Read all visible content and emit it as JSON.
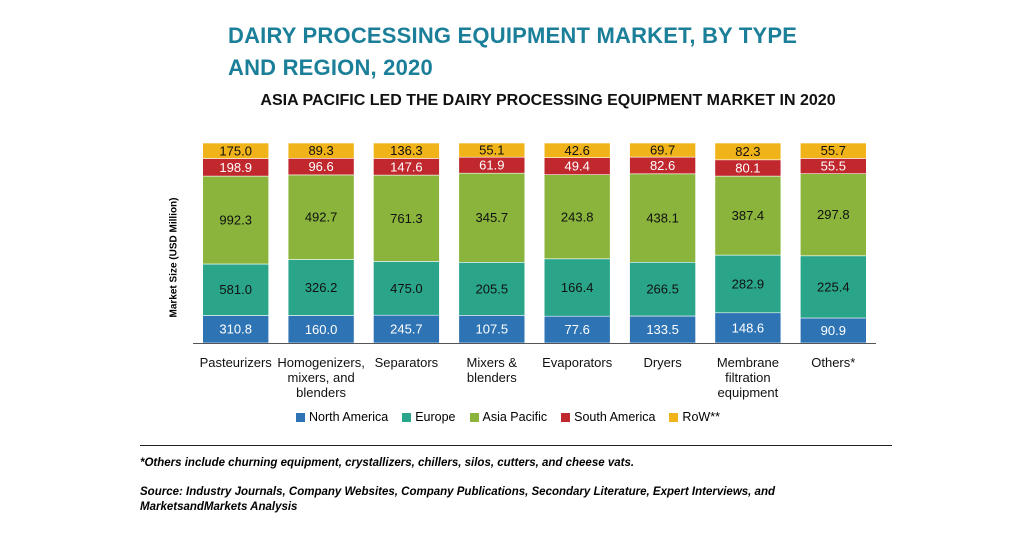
{
  "title_line1": "DAIRY PROCESSING EQUIPMENT MARKET, BY TYPE",
  "title_line2": "AND REGION, 2020",
  "subtitle": "ASIA PACIFIC LED THE DAIRY PROCESSING EQUIPMENT MARKET IN 2020",
  "footnote": "*Others include churning equipment, crystallizers, chillers, silos, cutters, and cheese vats.",
  "source": "Source: Industry Journals, Company Websites, Company Publications, Secondary Literature, Expert Interviews, and MarketsandMarkets Analysis",
  "colors": {
    "North America": "#2e74b5",
    "Europe": "#2aa58a",
    "Asia Pacific": "#8ab43c",
    "South America": "#c0282d",
    "RoW**": "#f0b41a",
    "title": "#1b7f99"
  },
  "chart_data": {
    "type": "bar",
    "stacked": true,
    "ylabel": "Market Size (USD Million)",
    "categories": [
      "Pasteurizers",
      "Homogenizers, mixers, and blenders",
      "Separators",
      "Mixers & blenders",
      "Evaporators",
      "Dryers",
      "Membrane filtration equipment",
      "Others*"
    ],
    "series": [
      {
        "name": "North America",
        "values": [
          310.8,
          160.0,
          245.7,
          107.5,
          77.6,
          133.5,
          148.6,
          90.9
        ]
      },
      {
        "name": "Europe",
        "values": [
          581.0,
          326.2,
          475.0,
          205.5,
          166.4,
          266.5,
          282.9,
          225.4
        ]
      },
      {
        "name": "Asia Pacific",
        "values": [
          992.3,
          492.7,
          761.3,
          345.7,
          243.8,
          438.1,
          387.4,
          297.8
        ]
      },
      {
        "name": "South America",
        "values": [
          198.9,
          96.6,
          147.6,
          61.9,
          49.4,
          82.6,
          80.1,
          55.5
        ]
      },
      {
        "name": "RoW**",
        "values": [
          175.0,
          89.3,
          136.3,
          55.1,
          42.6,
          69.7,
          82.3,
          55.7
        ]
      }
    ],
    "value_labels": [
      [
        "310.8",
        "160.0",
        "245.7",
        "107.5",
        "77.6",
        "133.5",
        "148.6",
        "90.9"
      ],
      [
        "581.0",
        "326.2",
        "475.0",
        "205.5",
        "166.4",
        "266.5",
        "282.9",
        "225.4"
      ],
      [
        "992.3",
        "492.7",
        "761.3",
        "345.7",
        "243.8",
        "438.1",
        "387.4",
        "297.8"
      ],
      [
        "198.9",
        "96.6",
        "147.6",
        "61.9",
        "49.4",
        "82.6",
        "80.1",
        "55.5"
      ],
      [
        "175.0",
        "89.3",
        "136.3",
        "55.1",
        "42.6",
        "69.7",
        "82.3",
        "55.7"
      ]
    ],
    "normalized_to_100_percent": true,
    "legend_position": "bottom",
    "grid": false
  }
}
